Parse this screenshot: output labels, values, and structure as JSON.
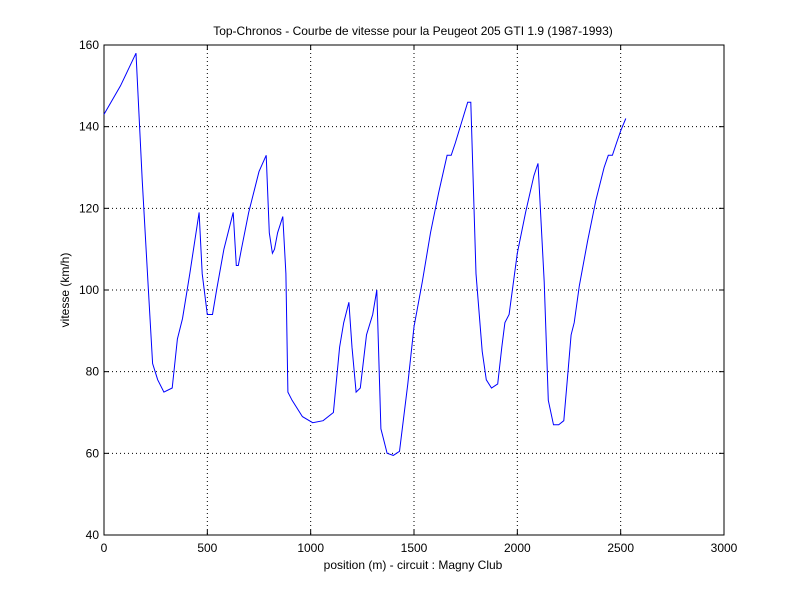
{
  "chart_data": {
    "type": "line",
    "title": "Top-Chronos - Courbe de vitesse pour la Peugeot 205 GTI 1.9 (1987-1993)",
    "xlabel": "position (m) - circuit : Magny Club",
    "ylabel": "vitesse (km/h)",
    "xlim": [
      0,
      3000
    ],
    "ylim": [
      40,
      160
    ],
    "xticks": [
      0,
      500,
      1000,
      1500,
      2000,
      2500,
      3000
    ],
    "yticks": [
      40,
      60,
      80,
      100,
      120,
      140,
      160
    ],
    "grid": true,
    "line_color": "#0000ff",
    "series": [
      {
        "x": [
          0,
          80,
          155,
          185,
          215,
          235,
          260,
          290,
          330,
          355,
          380,
          415,
          460,
          475,
          500,
          525,
          545,
          580,
          625,
          640,
          650,
          665,
          700,
          750,
          785,
          800,
          815,
          825,
          840,
          865,
          880,
          890,
          910,
          960,
          1010,
          1060,
          1110,
          1140,
          1160,
          1185,
          1200,
          1220,
          1240,
          1270,
          1300,
          1320,
          1340,
          1350,
          1370,
          1400,
          1430,
          1470,
          1500,
          1540,
          1580,
          1620,
          1660,
          1680,
          1700,
          1730,
          1760,
          1775,
          1800,
          1830,
          1850,
          1875,
          1905,
          1925,
          1940,
          1960,
          2000,
          2040,
          2080,
          2100,
          2130,
          2150,
          2175,
          2200,
          2225,
          2245,
          2260,
          2275,
          2300,
          2340,
          2380,
          2420,
          2440,
          2460,
          2480,
          2500,
          2525
        ],
        "y": [
          143,
          150,
          158,
          127,
          100,
          82,
          78,
          75,
          76,
          88,
          93,
          104,
          119,
          104,
          94,
          94,
          100,
          110,
          119,
          106,
          106,
          110,
          119,
          129,
          133,
          114,
          109,
          110,
          114,
          118,
          104,
          75,
          73,
          69,
          67.5,
          68,
          70,
          86,
          92,
          97,
          86,
          75,
          76,
          89,
          94,
          100,
          66,
          64,
          60,
          59.5,
          60.5,
          77,
          91,
          102,
          114,
          124,
          133,
          133,
          136,
          141,
          146,
          146,
          104,
          85,
          78,
          76,
          77,
          86,
          92,
          94,
          109,
          119,
          128,
          131,
          102,
          73,
          67,
          67,
          68,
          80,
          89,
          92,
          101,
          112,
          122,
          130,
          133,
          133,
          136,
          139,
          142
        ]
      }
    ]
  }
}
